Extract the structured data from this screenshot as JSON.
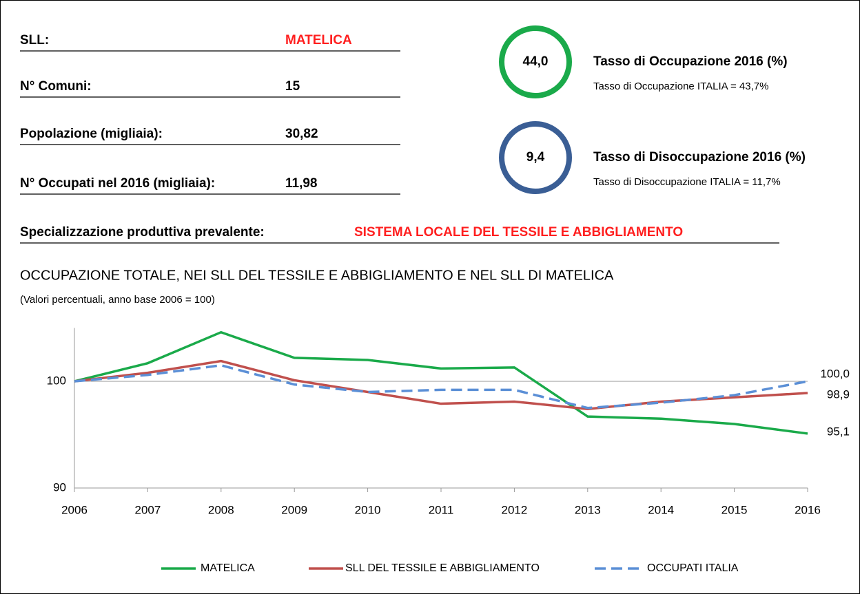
{
  "info": [
    {
      "label": "SLL:",
      "value": "MATELICA"
    },
    {
      "label": "N° Comuni:",
      "value": "15"
    },
    {
      "label": "Popolazione (migliaia):",
      "value": "30,82"
    },
    {
      "label": "N° Occupati nel 2016 (migliaia):",
      "value": "11,98"
    }
  ],
  "indicators": [
    {
      "value": "44,0",
      "title": "Tasso di Occupazione 2016 (%)",
      "note": "Tasso di Occupazione ITALIA = 43,7%"
    },
    {
      "value": "9,4",
      "title": "Tasso di Disoccupazione 2016 (%)",
      "note": "Tasso di Disoccupazione ITALIA = 11,7%"
    }
  ],
  "specialization": {
    "label": "Specializzazione produttiva prevalente:",
    "value": "SISTEMA LOCALE DEL TESSILE E ABBIGLIAMENTO"
  },
  "chart_data": {
    "type": "line",
    "title": "OCCUPAZIONE TOTALE, NEI SLL DEL TESSILE E ABBIGLIAMENTO E NEL SLL DI MATELICA",
    "subtitle": "(Valori percentuali, anno base 2006 = 100)",
    "categories": [
      "2006",
      "2007",
      "2008",
      "2009",
      "2010",
      "2011",
      "2012",
      "2013",
      "2014",
      "2015",
      "2016"
    ],
    "ylim": [
      90,
      105
    ],
    "yticks": [
      90,
      100
    ],
    "grid": true,
    "series": [
      {
        "name": "MATELICA",
        "color": "#1aaa4a",
        "dash": false,
        "values": [
          100,
          101.7,
          104.6,
          102.2,
          102.0,
          101.2,
          101.3,
          96.7,
          96.5,
          96.0,
          95.1
        ],
        "end_label": "95,1"
      },
      {
        "name": "SLL DEL TESSILE E ABBIGLIAMENTO",
        "color": "#c0504d",
        "dash": false,
        "values": [
          100,
          100.8,
          101.9,
          100.1,
          99.0,
          97.9,
          98.1,
          97.4,
          98.1,
          98.5,
          98.9
        ],
        "end_label": "98,9"
      },
      {
        "name": "OCCUPATI ITALIA",
        "color": "#5b8fd6",
        "dash": true,
        "values": [
          100,
          100.6,
          101.5,
          99.7,
          99.0,
          99.2,
          99.2,
          97.5,
          98.0,
          98.7,
          100.0
        ],
        "end_label": "100,0"
      }
    ]
  }
}
